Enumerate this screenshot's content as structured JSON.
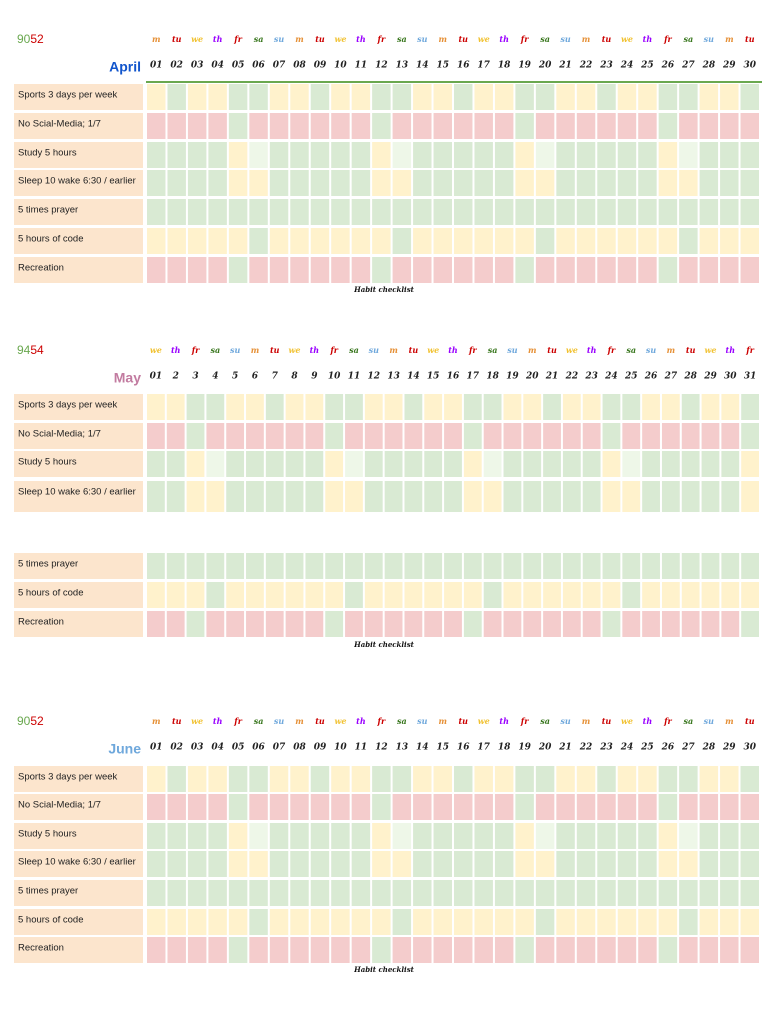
{
  "months": [
    {
      "score": [
        "90",
        "52"
      ],
      "name": "April",
      "weekdays": [
        "m",
        "tu",
        "we",
        "th",
        "fr",
        "sa",
        "su",
        "m",
        "tu",
        "we",
        "th",
        "fr",
        "sa",
        "su",
        "m",
        "tu",
        "we",
        "th",
        "fr",
        "sa",
        "su",
        "m",
        "tu",
        "we",
        "th",
        "fr",
        "sa",
        "su",
        "m",
        "tu"
      ],
      "days": [
        "01",
        "02",
        "03",
        "04",
        "05",
        "06",
        "07",
        "08",
        "09",
        "10",
        "11",
        "12",
        "13",
        "14",
        "15",
        "16",
        "17",
        "18",
        "19",
        "20",
        "21",
        "22",
        "23",
        "24",
        "25",
        "26",
        "27",
        "28",
        "29",
        "30"
      ],
      "habits": [
        "Sports 3 days per week",
        "No Scial-Media; 1/7",
        "Study 5 hours",
        "Sleep 10 wake 6:30 / earlier",
        "5 times prayer",
        "5 hours of code",
        "Recreation"
      ],
      "footer": "Habit checklist"
    },
    {
      "score": [
        "94",
        "54"
      ],
      "name": "May",
      "weekdays": [
        "we",
        "th",
        "fr",
        "sa",
        "su",
        "m",
        "tu",
        "we",
        "th",
        "fr",
        "sa",
        "su",
        "m",
        "tu",
        "we",
        "th",
        "fr",
        "sa",
        "su",
        "m",
        "tu",
        "we",
        "th",
        "fr",
        "sa",
        "su",
        "m",
        "tu",
        "we",
        "th",
        "fr"
      ],
      "days": [
        "01",
        "2",
        "3",
        "4",
        "5",
        "6",
        "7",
        "8",
        "9",
        "10",
        "11",
        "12",
        "13",
        "14",
        "15",
        "16",
        "17",
        "18",
        "19",
        "20",
        "21",
        "22",
        "23",
        "24",
        "25",
        "26",
        "27",
        "28",
        "29",
        "30",
        "31"
      ],
      "habits": [
        "Sports 3 days per week",
        "No Scial-Media; 1/7",
        "Study 5 hours",
        "Sleep 10 wake 6:30 / earlier",
        "5 times prayer",
        "5 hours of code",
        "Recreation"
      ],
      "footer": "Habit checklist"
    },
    {
      "score": [
        "90",
        "52"
      ],
      "name": "June",
      "weekdays": [
        "m",
        "tu",
        "we",
        "th",
        "fr",
        "sa",
        "su",
        "m",
        "tu",
        "we",
        "th",
        "fr",
        "sa",
        "su",
        "m",
        "tu",
        "we",
        "th",
        "fr",
        "sa",
        "su",
        "m",
        "tu",
        "we",
        "th",
        "fr",
        "sa",
        "su",
        "m",
        "tu"
      ],
      "days": [
        "01",
        "02",
        "03",
        "04",
        "05",
        "06",
        "07",
        "08",
        "09",
        "10",
        "11",
        "12",
        "13",
        "14",
        "15",
        "16",
        "17",
        "18",
        "19",
        "20",
        "21",
        "22",
        "23",
        "24",
        "25",
        "26",
        "27",
        "28",
        "29",
        "30"
      ],
      "habits": [
        "Sports 3 days per week",
        "No Scial-Media; 1/7",
        "Study 5 hours",
        "Sleep 10 wake 6:30 / earlier",
        "5 times prayer",
        "5 hours of code",
        "Recreation"
      ],
      "footer": "Habit checklist"
    }
  ]
}
